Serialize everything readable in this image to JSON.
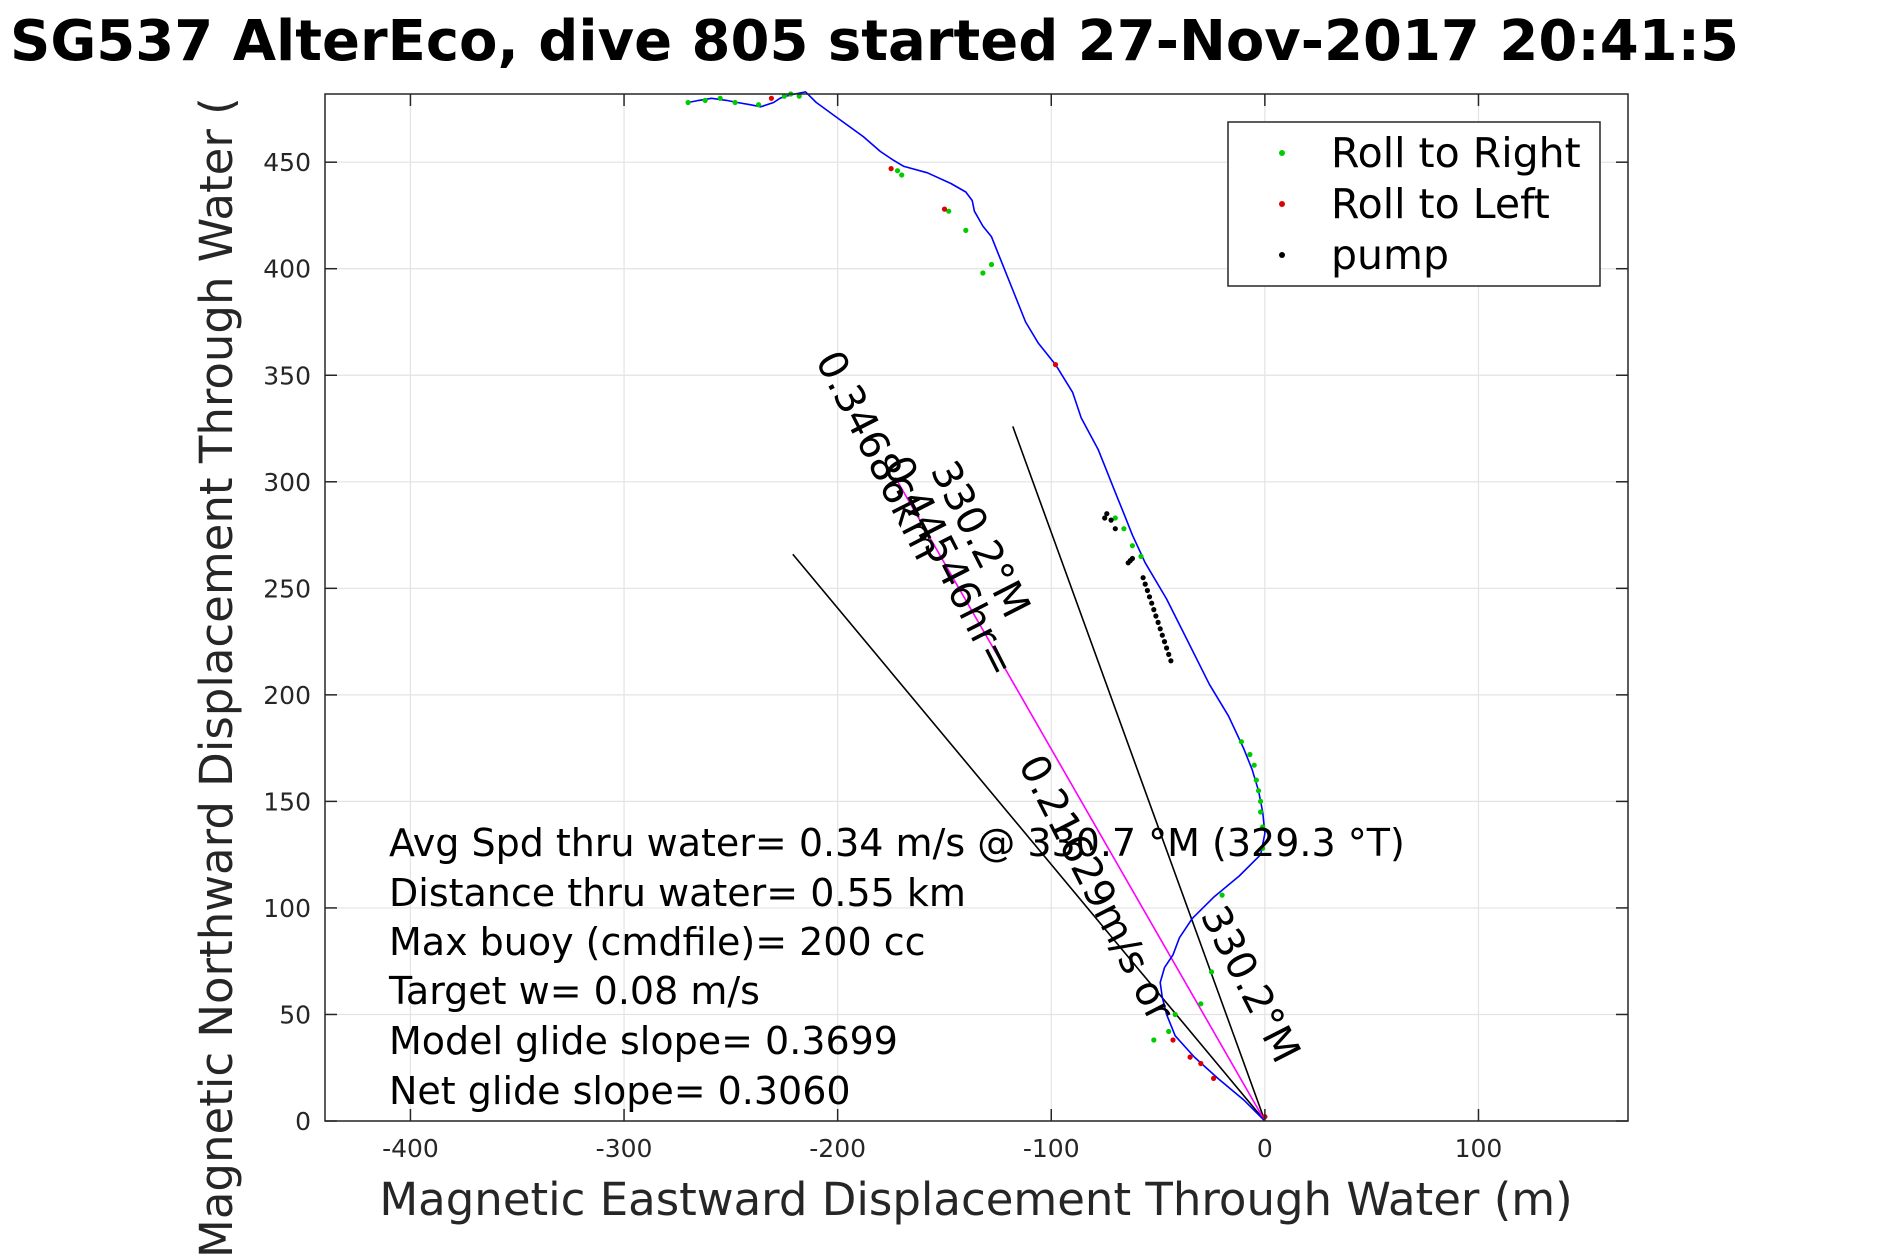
{
  "chart_data": {
    "type": "line",
    "title": "SG537 AlterEco, dive 805 started 27-Nov-2017 20:41:5",
    "xlabel": "Magnetic Eastward Displacement Through Water (m)",
    "ylabel": "Magnetic Northward Displacement Through Water (",
    "xlim": [
      -440,
      170
    ],
    "ylim": [
      0,
      482
    ],
    "xticks": [
      -400,
      -300,
      -200,
      -100,
      0,
      100
    ],
    "xtick_labels": [
      "-400",
      "-300",
      "-200",
      "-100",
      "0",
      "100"
    ],
    "yticks": [
      0,
      50,
      100,
      150,
      200,
      250,
      300,
      350,
      400,
      450
    ],
    "ytick_labels": [
      "0",
      "50",
      "100",
      "150",
      "200",
      "250",
      "300",
      "350",
      "400",
      "450"
    ],
    "grid": true,
    "legend_position": "top-right",
    "legend": [
      {
        "label": "Roll to Right",
        "color": "#00cc00"
      },
      {
        "label": "Roll to Left",
        "color": "#e00000"
      },
      {
        "label": "pump",
        "color": "#000000"
      }
    ],
    "track": {
      "color": "#0000ff",
      "x": [
        0,
        -10,
        -22,
        -33,
        -42,
        -46,
        -48,
        -49,
        -47,
        -43,
        -40,
        -34,
        -24,
        -12,
        -2,
        0,
        -1,
        -3,
        -6,
        -10,
        -17,
        -26,
        -36,
        -46,
        -56,
        -62,
        -66,
        -70,
        -74,
        -78,
        -86,
        -90,
        -98,
        -106,
        -112,
        -118,
        -124,
        -128,
        -132,
        -136,
        -137,
        -140,
        -147,
        -158,
        -169,
        -174,
        -180,
        -188,
        -199,
        -210,
        -215,
        -220,
        -224,
        -227,
        -230,
        -236,
        -241,
        -247,
        -252,
        -259,
        -265,
        -270
      ],
      "y": [
        0,
        10,
        20,
        30,
        40,
        50,
        58,
        65,
        72,
        78,
        86,
        95,
        105,
        115,
        125,
        135,
        145,
        155,
        165,
        175,
        190,
        205,
        225,
        245,
        262,
        275,
        285,
        295,
        305,
        315,
        330,
        342,
        355,
        365,
        375,
        390,
        405,
        415,
        420,
        427,
        432,
        436,
        440,
        445,
        448,
        451,
        455,
        462,
        470,
        478,
        483,
        482,
        481,
        480,
        478,
        476,
        477,
        478,
        479,
        480,
        479,
        478
      ]
    },
    "roll_right_points": {
      "color": "#00cc00",
      "x": [
        -1,
        -1,
        -2,
        -2,
        -3,
        -4,
        -5,
        -7,
        -11,
        -20,
        -25,
        -30,
        -42,
        -45,
        -52,
        -58,
        -62,
        -66,
        -70,
        -132,
        -128,
        -140,
        -148,
        -170,
        -172,
        -218,
        -222,
        -225,
        -237,
        -248,
        -255,
        -262,
        -270
      ],
      "y": [
        128,
        138,
        145,
        150,
        155,
        160,
        167,
        172,
        178,
        106,
        70,
        55,
        50,
        42,
        38,
        265,
        270,
        278,
        283,
        398,
        402,
        418,
        427,
        444,
        446,
        481,
        482,
        481,
        477,
        478,
        480,
        479,
        478
      ]
    },
    "roll_left_points": {
      "color": "#e00000",
      "x": [
        0,
        -24,
        -30,
        -35,
        -43,
        -98,
        -150,
        -175,
        -231
      ],
      "y": [
        2,
        20,
        27,
        30,
        38,
        355,
        428,
        447,
        480
      ]
    },
    "pump_points": {
      "color": "#000000",
      "x": [
        -57,
        -56,
        -55,
        -54,
        -53,
        -52,
        -51,
        -50,
        -49,
        -48,
        -47,
        -46,
        -45,
        -44,
        -70,
        -72,
        -74,
        -75,
        -62,
        -63,
        -64
      ],
      "y": [
        255,
        252,
        249,
        246,
        243,
        240,
        237,
        234,
        231,
        228,
        225,
        222,
        219,
        216,
        278,
        282,
        285,
        283,
        264,
        263,
        262
      ]
    },
    "bearing_lines": {
      "color": "#000000",
      "lines": [
        {
          "x": [
            0,
            -221
          ],
          "y": [
            0,
            266
          ]
        },
        {
          "x": [
            0,
            -118
          ],
          "y": [
            0,
            326
          ]
        }
      ]
    },
    "mean_heading_line": {
      "color": "#ff00ff",
      "x": [
        0,
        -173
      ],
      "y": [
        0,
        302
      ]
    },
    "rotated_annotations": [
      "0.34686km",
      "330.2°M",
      "0.44546hr=",
      "0.21629m/s or",
      "330.2°M"
    ],
    "annotations": [
      "Avg Spd thru water=  0.34 m/s @ 330.7 °M (329.3 °T)",
      "Distance thru water=  0.55 km",
      "Max buoy (cmdfile)= 200 cc",
      "Target w= 0.08 m/s",
      "Model glide slope= 0.3699",
      "Net glide slope= 0.3060"
    ]
  }
}
